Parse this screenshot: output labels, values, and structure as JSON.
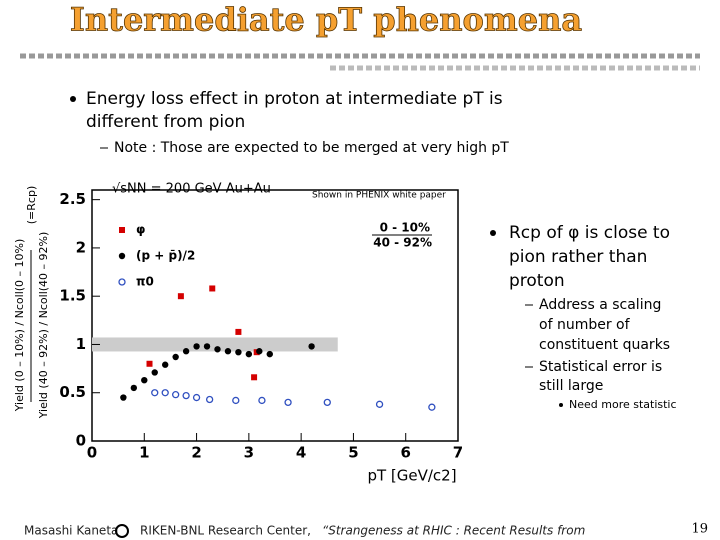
{
  "header": {
    "title": "Intermediate pT phenomena"
  },
  "bullets": {
    "main": [
      "Energy loss effect in proton at intermediate pT is",
      "different from pion"
    ],
    "note": "Note : Those are expected to be merged at very high pT"
  },
  "side": {
    "main": [
      "Rcp of φ is close to",
      "pion rather than",
      "proton"
    ],
    "sub1": [
      "Address a scaling",
      "of number of",
      "constituent quarks"
    ],
    "sub2": [
      "Statistical error is",
      "still large"
    ],
    "subsub": "Need more statistic"
  },
  "chart_data": {
    "type": "scatter",
    "annotation": "√sNN = 200 GeV Au+Au",
    "source_note": "Shown in PHENIX white paper",
    "legend_title": [
      "0 - 10%",
      "40 - 92%"
    ],
    "ylabel": [
      "Yield (0 – 10%) / Ncoll(0 – 10%)",
      "Yield (40 – 92%) / Ncoll(40 – 92%)"
    ],
    "ylabel_note": "(=Rcp)",
    "xlabel": "pT [GeV/c2]",
    "xlim": [
      0,
      7
    ],
    "ylim": [
      0,
      2.6
    ],
    "xticks": [
      0,
      1,
      2,
      3,
      4,
      5,
      6,
      7
    ],
    "yticks": [
      0,
      0.5,
      1,
      1.5,
      2,
      2.5
    ],
    "series": [
      {
        "name": "φ",
        "color": "#d40000",
        "marker": "square",
        "x": [
          1.1,
          1.7,
          2.3,
          2.8,
          3.15,
          3.1
        ],
        "values": [
          0.8,
          1.5,
          1.58,
          1.13,
          0.92,
          0.66
        ]
      },
      {
        "name": "(p + p̄)/2",
        "color": "#000000",
        "marker": "circle",
        "x": [
          0.6,
          0.8,
          1.0,
          1.2,
          1.4,
          1.6,
          1.8,
          2.0,
          2.2,
          2.4,
          2.6,
          2.8,
          3.0,
          3.2,
          3.4,
          4.2
        ],
        "values": [
          0.45,
          0.55,
          0.63,
          0.71,
          0.79,
          0.87,
          0.93,
          0.98,
          0.98,
          0.95,
          0.93,
          0.92,
          0.9,
          0.93,
          0.9,
          0.98
        ]
      },
      {
        "name": "π0",
        "color": "#3050c0",
        "marker": "open-circle",
        "x": [
          1.2,
          1.4,
          1.6,
          1.8,
          2.0,
          2.25,
          2.75,
          3.25,
          3.75,
          4.5,
          5.5,
          6.5
        ],
        "values": [
          0.5,
          0.5,
          0.48,
          0.47,
          0.45,
          0.43,
          0.42,
          0.42,
          0.4,
          0.4,
          0.38,
          0.35
        ]
      }
    ]
  },
  "footer": {
    "author": "Masashi Kaneta",
    "affiliation": "RIKEN-BNL Research Center,",
    "talk": "“Strangeness at RHIC : Recent Results from",
    "page": "19"
  }
}
